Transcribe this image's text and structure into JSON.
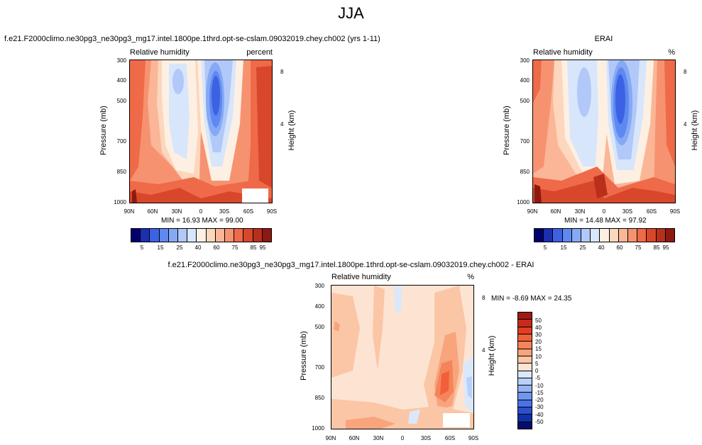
{
  "main_title": "JJA",
  "chart_data": [
    {
      "type": "heatmap",
      "title": "f.e21.F2000climo.ne30pg3_ne30pg3_mg17.intel.1800pe.1thrd.opt-se-cslam.09032019.chey.ch002 (yrs 1-11)",
      "left_string": "Relative humidity",
      "right_string": "percent",
      "ylabel": "Pressure (mb)",
      "y2label": "Height (km)",
      "xticks": [
        "90N",
        "60N",
        "30N",
        "0",
        "30S",
        "60S",
        "90S"
      ],
      "yticks": [
        "300",
        "400",
        "500",
        "700",
        "850",
        "1000"
      ],
      "y2ticks": [
        "8",
        "4"
      ],
      "min_max": "MIN = 16.93  MAX = 99.00",
      "colorbar": {
        "labels": [
          "5",
          "15",
          "25",
          "40",
          "60",
          "75",
          "85",
          "95"
        ],
        "colors": [
          "#03006e",
          "#1c2fb0",
          "#3c62e3",
          "#5e89f0",
          "#86a9f5",
          "#b1c8f9",
          "#d8e6fb",
          "#fdf0e3",
          "#fcd6bd",
          "#fab697",
          "#f79270",
          "#ef6a48",
          "#d9472a",
          "#b8301c",
          "#8e1911"
        ]
      }
    },
    {
      "type": "heatmap",
      "title": "ERAI",
      "left_string": "Relative humidity",
      "right_string": "%",
      "ylabel": "Pressure (mb)",
      "y2label": "Height (km)",
      "xticks": [
        "90N",
        "60N",
        "30N",
        "0",
        "30S",
        "60S",
        "90S"
      ],
      "yticks": [
        "300",
        "400",
        "500",
        "700",
        "850",
        "1000"
      ],
      "y2ticks": [
        "8",
        "4"
      ],
      "min_max": "MIN = 14.48  MAX = 97.92",
      "colorbar": {
        "labels": [
          "5",
          "15",
          "25",
          "40",
          "60",
          "75",
          "85",
          "95"
        ],
        "colors": [
          "#03006e",
          "#1c2fb0",
          "#3c62e3",
          "#5e89f0",
          "#86a9f5",
          "#b1c8f9",
          "#d8e6fb",
          "#fdf0e3",
          "#fcd6bd",
          "#fab697",
          "#f79270",
          "#ef6a48",
          "#d9472a",
          "#b8301c",
          "#8e1911"
        ]
      }
    },
    {
      "type": "heatmap",
      "title": "f.e21.F2000climo.ne30pg3_ne30pg3_mg17.intel.1800pe.1thrd.opt-se-cslam.09032019.chey.ch002 - ERAI",
      "left_string": "Relative humidity",
      "right_string": "%",
      "ylabel": "Pressure (mb)",
      "y2label": "Height (km)",
      "xticks": [
        "90N",
        "60N",
        "30N",
        "0",
        "30S",
        "60S",
        "90S"
      ],
      "yticks": [
        "300",
        "400",
        "500",
        "700",
        "850",
        "1000"
      ],
      "y2ticks": [
        "8",
        "4"
      ],
      "min_max": "MIN = -8.69  MAX = 24.35",
      "colorbar": {
        "labels": [
          "50",
          "40",
          "30",
          "20",
          "15",
          "10",
          "5",
          "0",
          "-5",
          "-10",
          "-15",
          "-20",
          "-30",
          "-40",
          "-50"
        ],
        "colors": [
          "#a01a12",
          "#c62a1c",
          "#e23d22",
          "#f0603a",
          "#f5845a",
          "#f8a47d",
          "#fbc6a6",
          "#fde4d2",
          "#dbe8fb",
          "#b9d0f8",
          "#94b4f3",
          "#6f96ee",
          "#4a73e6",
          "#2b4fd0",
          "#1230a6",
          "#050d6e"
        ]
      }
    }
  ]
}
